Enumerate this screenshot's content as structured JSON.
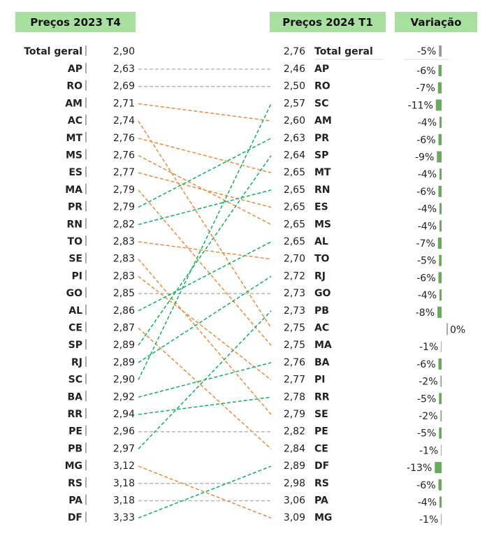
{
  "chart_data": {
    "type": "slope",
    "headers": {
      "left": "Preços 2023 T4",
      "right": "Preços 2024 T1",
      "variation": "Variação"
    },
    "total": {
      "label": "Total geral",
      "left_value": "2,90",
      "right_value": "2,76",
      "variation": "-5%",
      "variation_value": -5
    },
    "left_rows": [
      {
        "state": "AP",
        "value": "2,63"
      },
      {
        "state": "RO",
        "value": "2,69"
      },
      {
        "state": "AM",
        "value": "2,71"
      },
      {
        "state": "AC",
        "value": "2,74"
      },
      {
        "state": "MT",
        "value": "2,76"
      },
      {
        "state": "MS",
        "value": "2,76"
      },
      {
        "state": "ES",
        "value": "2,77"
      },
      {
        "state": "MA",
        "value": "2,79"
      },
      {
        "state": "PR",
        "value": "2,79"
      },
      {
        "state": "RN",
        "value": "2,82"
      },
      {
        "state": "TO",
        "value": "2,83"
      },
      {
        "state": "SE",
        "value": "2,83"
      },
      {
        "state": "PI",
        "value": "2,83"
      },
      {
        "state": "GO",
        "value": "2,85"
      },
      {
        "state": "AL",
        "value": "2,86"
      },
      {
        "state": "CE",
        "value": "2,87"
      },
      {
        "state": "SP",
        "value": "2,89"
      },
      {
        "state": "RJ",
        "value": "2,89"
      },
      {
        "state": "SC",
        "value": "2,90"
      },
      {
        "state": "BA",
        "value": "2,92"
      },
      {
        "state": "RR",
        "value": "2,94"
      },
      {
        "state": "PE",
        "value": "2,96"
      },
      {
        "state": "PB",
        "value": "2,97"
      },
      {
        "state": "MG",
        "value": "3,12"
      },
      {
        "state": "RS",
        "value": "3,18"
      },
      {
        "state": "PA",
        "value": "3,18"
      },
      {
        "state": "DF",
        "value": "3,33"
      }
    ],
    "right_rows": [
      {
        "state": "AP",
        "value": "2,46",
        "variation": "-6%",
        "variation_value": -6
      },
      {
        "state": "RO",
        "value": "2,50",
        "variation": "-7%",
        "variation_value": -7
      },
      {
        "state": "SC",
        "value": "2,57",
        "variation": "-11%",
        "variation_value": -11
      },
      {
        "state": "AM",
        "value": "2,60",
        "variation": "-4%",
        "variation_value": -4
      },
      {
        "state": "PR",
        "value": "2,63",
        "variation": "-6%",
        "variation_value": -6
      },
      {
        "state": "SP",
        "value": "2,64",
        "variation": "-9%",
        "variation_value": -9
      },
      {
        "state": "MT",
        "value": "2,65",
        "variation": "-4%",
        "variation_value": -4
      },
      {
        "state": "RN",
        "value": "2,65",
        "variation": "-6%",
        "variation_value": -6
      },
      {
        "state": "ES",
        "value": "2,65",
        "variation": "-4%",
        "variation_value": -4
      },
      {
        "state": "MS",
        "value": "2,65",
        "variation": "-4%",
        "variation_value": -4
      },
      {
        "state": "AL",
        "value": "2,65",
        "variation": "-7%",
        "variation_value": -7
      },
      {
        "state": "TO",
        "value": "2,70",
        "variation": "-5%",
        "variation_value": -5
      },
      {
        "state": "RJ",
        "value": "2,72",
        "variation": "-6%",
        "variation_value": -6
      },
      {
        "state": "GO",
        "value": "2,73",
        "variation": "-4%",
        "variation_value": -4
      },
      {
        "state": "PB",
        "value": "2,73",
        "variation": "-8%",
        "variation_value": -8
      },
      {
        "state": "AC",
        "value": "2,75",
        "variation": "0%",
        "variation_value": 0
      },
      {
        "state": "MA",
        "value": "2,75",
        "variation": "-1%",
        "variation_value": -1
      },
      {
        "state": "BA",
        "value": "2,76",
        "variation": "-6%",
        "variation_value": -6
      },
      {
        "state": "PI",
        "value": "2,77",
        "variation": "-2%",
        "variation_value": -2
      },
      {
        "state": "RR",
        "value": "2,78",
        "variation": "-5%",
        "variation_value": -5
      },
      {
        "state": "SE",
        "value": "2,79",
        "variation": "-2%",
        "variation_value": -2
      },
      {
        "state": "PE",
        "value": "2,82",
        "variation": "-5%",
        "variation_value": -5
      },
      {
        "state": "CE",
        "value": "2,84",
        "variation": "-1%",
        "variation_value": -1
      },
      {
        "state": "DF",
        "value": "2,89",
        "variation": "-13%",
        "variation_value": -13
      },
      {
        "state": "RS",
        "value": "2,98",
        "variation": "-6%",
        "variation_value": -6
      },
      {
        "state": "PA",
        "value": "3,06",
        "variation": "-4%",
        "variation_value": -4
      },
      {
        "state": "MG",
        "value": "3,09",
        "variation": "-1%",
        "variation_value": -1
      }
    ],
    "colors": {
      "rank_improved": "#10b060",
      "rank_worsened": "#f08a3c",
      "rank_unchanged": "#b8b8b8",
      "variation_bar": "#6aaa5f",
      "variation_total_bar": "#9a9a9a",
      "header_fill": "#a8e0a0"
    }
  }
}
